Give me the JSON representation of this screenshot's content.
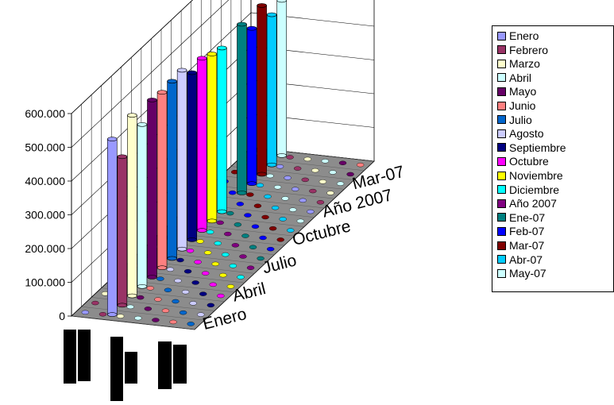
{
  "chart_data": {
    "type": "bar",
    "title": "",
    "xlabel": "",
    "ylabel": "",
    "ylim": [
      0,
      600000
    ],
    "y_tick_labels": [
      "0",
      "100.000",
      "200.000",
      "300.000",
      "400.000",
      "500.000",
      "600.000"
    ],
    "y_tick_values": [
      0,
      100000,
      200000,
      300000,
      400000,
      500000,
      600000
    ],
    "depth_tick_labels": [
      "Enero",
      "Abril",
      "Julio",
      "Octubre",
      "Año 2007",
      "Mar-07"
    ],
    "depth_tick_indices": [
      0,
      3,
      6,
      9,
      12,
      15
    ],
    "legend_position": "right",
    "grid": true,
    "series": [
      {
        "name": "Enero",
        "color": "#9999ff",
        "value": 520000
      },
      {
        "name": "Febrero",
        "color": "#993366",
        "value": 440000
      },
      {
        "name": "Marzo",
        "color": "#ffffcc",
        "value": 535000
      },
      {
        "name": "Abril",
        "color": "#ccffff",
        "value": 480000
      },
      {
        "name": "Mayo",
        "color": "#660066",
        "value": 525000
      },
      {
        "name": "Junio",
        "color": "#ff8080",
        "value": 520000
      },
      {
        "name": "Julio",
        "color": "#0066cc",
        "value": 525000
      },
      {
        "name": "Agosto",
        "color": "#ccccff",
        "value": 530000
      },
      {
        "name": "Septiembre",
        "color": "#000080",
        "value": 495000
      },
      {
        "name": "Octubre",
        "color": "#ff00ff",
        "value": 510000
      },
      {
        "name": "Noviembre",
        "color": "#ffff00",
        "value": 495000
      },
      {
        "name": "Diciembre",
        "color": "#00ffff",
        "value": 485000
      },
      {
        "name": "Año 2007",
        "color": "#800080",
        "value": 0
      },
      {
        "name": "Ene-07",
        "color": "#008080",
        "value": 500000
      },
      {
        "name": "Feb-07",
        "color": "#0000ff",
        "value": 460000
      },
      {
        "name": "Mar-07",
        "color": "#800000",
        "value": 500000
      },
      {
        "name": "Abr-07",
        "color": "#00ccff",
        "value": 445000
      },
      {
        "name": "May-07",
        "color": "#ccffff",
        "value": 460000
      }
    ]
  }
}
